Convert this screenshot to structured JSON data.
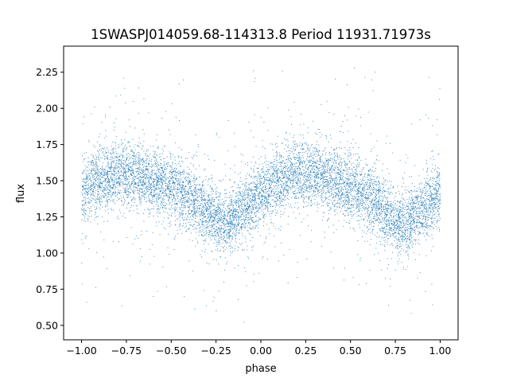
{
  "chart_data": {
    "type": "scatter",
    "title": "1SWASPJ014059.68-114313.8 Period 11931.71973s",
    "xlabel": "phase",
    "ylabel": "flux",
    "xlim": [
      -1.1,
      1.1
    ],
    "ylim": [
      0.4,
      2.43
    ],
    "x_ticks": [
      -1.0,
      -0.75,
      -0.5,
      -0.25,
      0.0,
      0.25,
      0.5,
      0.75,
      1.0
    ],
    "x_tick_labels": [
      "−1.00",
      "−0.75",
      "−0.50",
      "−0.25",
      "0.00",
      "0.25",
      "0.50",
      "0.75",
      "1.00"
    ],
    "y_ticks": [
      0.5,
      0.75,
      1.0,
      1.25,
      1.5,
      1.75,
      2.0,
      2.25
    ],
    "y_tick_labels": [
      "0.50",
      "0.75",
      "1.00",
      "1.25",
      "1.50",
      "1.75",
      "2.00",
      "2.25"
    ],
    "grid": false,
    "point_color": "#1f77b4",
    "series": [
      {
        "x_range": [
          -1.0,
          1.0
        ],
        "n_points": 9000,
        "model": "periodic light curve, period 1.0 in phase",
        "profile": {
          "phase": [
            0.0,
            0.1,
            0.2,
            0.3,
            0.4,
            0.5,
            0.6,
            0.7,
            0.8,
            0.9,
            1.0
          ],
          "flux": [
            1.4,
            1.5,
            1.55,
            1.54,
            1.5,
            1.45,
            1.38,
            1.28,
            1.2,
            1.3,
            1.4
          ]
        },
        "scatter_sigma": 0.11,
        "outlier_fraction": 0.08,
        "outlier_range": [
          0.5,
          2.3
        ]
      }
    ]
  }
}
